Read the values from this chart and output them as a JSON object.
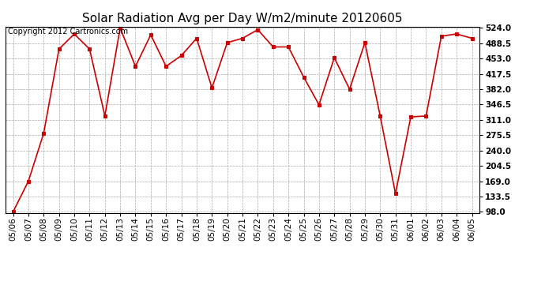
{
  "title": "Solar Radiation Avg per Day W/m2/minute 20120605",
  "copyright_text": "Copyright 2012 Cartronics.com",
  "x_labels": [
    "05/06",
    "05/07",
    "05/08",
    "05/09",
    "05/10",
    "05/11",
    "05/12",
    "05/13",
    "05/14",
    "05/15",
    "05/16",
    "05/17",
    "05/18",
    "05/19",
    "05/20",
    "05/21",
    "05/22",
    "05/23",
    "05/24",
    "05/25",
    "05/26",
    "05/27",
    "05/28",
    "05/29",
    "05/30",
    "05/31",
    "06/01",
    "06/02",
    "06/03",
    "06/04",
    "06/05"
  ],
  "y_values": [
    98,
    169,
    280,
    475,
    510,
    475,
    320,
    524,
    435,
    508,
    435,
    460,
    500,
    385,
    490,
    500,
    520,
    480,
    480,
    410,
    346,
    455,
    382,
    490,
    320,
    140,
    318,
    320,
    505,
    510,
    500
  ],
  "line_color": "#cc0000",
  "marker_color": "#cc0000",
  "background_color": "#ffffff",
  "grid_color": "#aaaaaa",
  "y_min": 98.0,
  "y_max": 524.0,
  "y_ticks": [
    98.0,
    133.5,
    169.0,
    204.5,
    240.0,
    275.5,
    311.0,
    346.5,
    382.0,
    417.5,
    453.0,
    488.5,
    524.0
  ],
  "title_fontsize": 11,
  "copyright_fontsize": 7,
  "tick_fontsize": 7.5
}
